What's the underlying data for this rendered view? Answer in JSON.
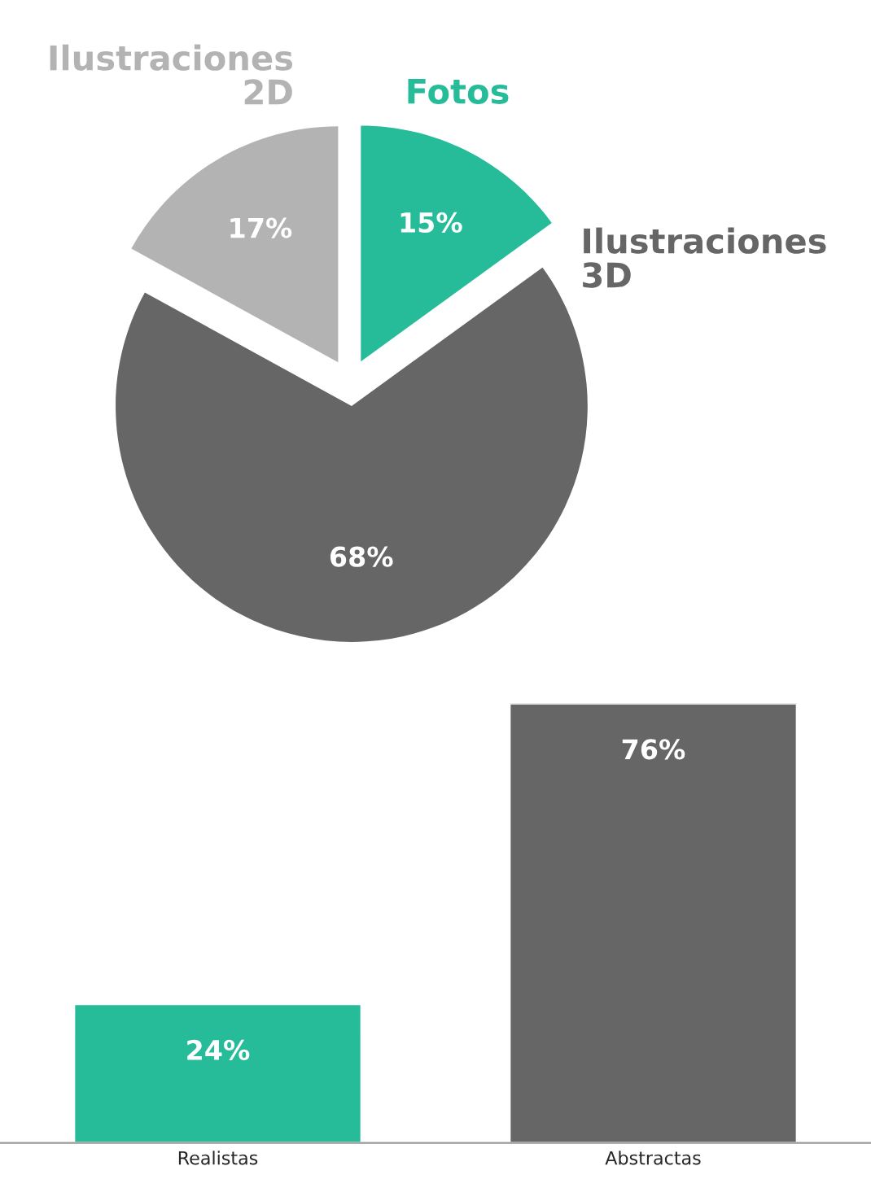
{
  "chart_data": [
    {
      "type": "pie",
      "categories": [
        "Fotos",
        "Ilustraciones 3D",
        "Ilustraciones 2D"
      ],
      "values": [
        15,
        68,
        17
      ],
      "colors": [
        "#26bc9a",
        "#666666",
        "#b3b3b3"
      ],
      "value_labels": [
        "15%",
        "68%",
        "17%"
      ]
    },
    {
      "type": "bar",
      "categories": [
        "Realistas",
        "Abstractas"
      ],
      "values": [
        24,
        76
      ],
      "colors": [
        "#26bc9a",
        "#666666"
      ],
      "value_labels": [
        "24%",
        "76%"
      ]
    }
  ]
}
